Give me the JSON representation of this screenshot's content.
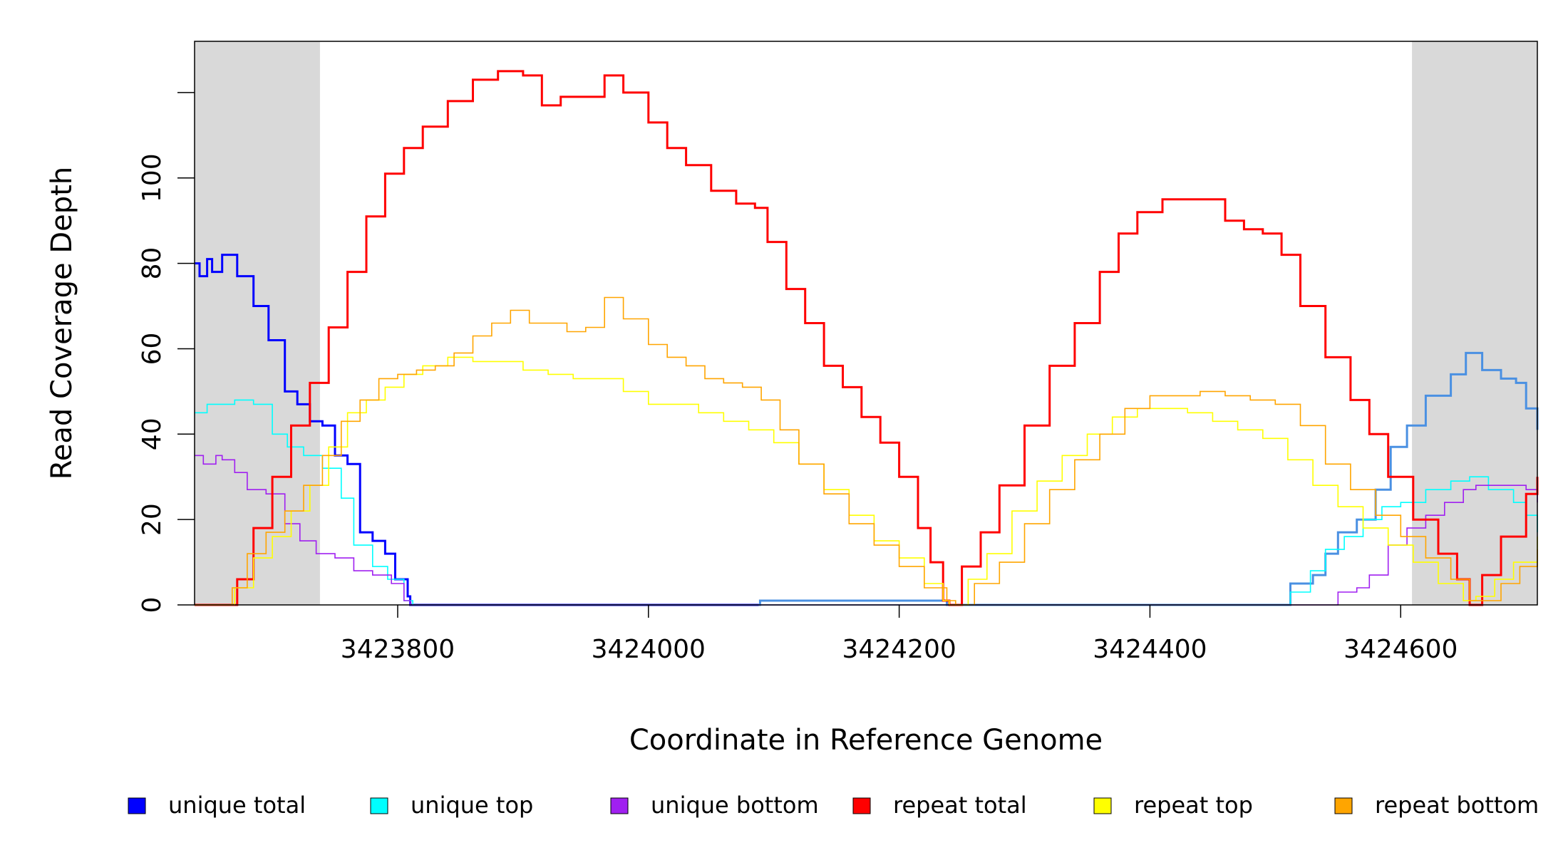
{
  "chart_data": {
    "type": "line",
    "title": "",
    "xlabel": "Coordinate in Reference Genome",
    "ylabel": "Read Coverage Depth",
    "xlim": [
      3423638,
      3424709
    ],
    "ylim": [
      0,
      132
    ],
    "x_ticks": [
      3423800,
      3424000,
      3424200,
      3424400,
      3424600
    ],
    "y_ticks": [
      0,
      20,
      40,
      60,
      80,
      100
    ],
    "grid": false,
    "shaded_regions": [
      [
        3423638,
        3423738
      ],
      [
        3424609,
        3424709
      ]
    ],
    "legend_position": "bottom",
    "series": [
      {
        "name": "unique total",
        "color": "#0000ff",
        "points": [
          [
            3423638,
            80
          ],
          [
            3423642,
            77
          ],
          [
            3423648,
            81
          ],
          [
            3423652,
            78
          ],
          [
            3423660,
            82
          ],
          [
            3423670,
            82
          ],
          [
            3423672,
            77
          ],
          [
            3423685,
            70
          ],
          [
            3423697,
            62
          ],
          [
            3423710,
            50
          ],
          [
            3423720,
            47
          ],
          [
            3423730,
            43
          ],
          [
            3423740,
            42
          ],
          [
            3423750,
            35
          ],
          [
            3423760,
            33
          ],
          [
            3423770,
            17
          ],
          [
            3423780,
            15
          ],
          [
            3423790,
            12
          ],
          [
            3423798,
            6
          ],
          [
            3423808,
            2
          ],
          [
            3423810,
            0
          ],
          [
            3424088,
            0
          ]
        ]
      },
      {
        "name": "unique total",
        "color": "#4a90e2",
        "points": [
          [
            3424088,
            0
          ],
          [
            3424089,
            1
          ],
          [
            3424236,
            1
          ],
          [
            3424238,
            0
          ],
          [
            3424504,
            0
          ],
          [
            3424512,
            5
          ],
          [
            3424530,
            7
          ],
          [
            3424540,
            12
          ],
          [
            3424550,
            17
          ],
          [
            3424565,
            20
          ],
          [
            3424580,
            27
          ],
          [
            3424592,
            37
          ],
          [
            3424605,
            42
          ],
          [
            3424620,
            49
          ],
          [
            3424640,
            54
          ],
          [
            3424652,
            59
          ],
          [
            3424665,
            55
          ],
          [
            3424680,
            53
          ],
          [
            3424692,
            52
          ],
          [
            3424700,
            46
          ],
          [
            3424709,
            41
          ]
        ]
      },
      {
        "name": "unique top",
        "color": "#00ffff",
        "points": [
          [
            3423638,
            45
          ],
          [
            3423648,
            47
          ],
          [
            3423660,
            47
          ],
          [
            3423670,
            48
          ],
          [
            3423685,
            47
          ],
          [
            3423700,
            40
          ],
          [
            3423712,
            37
          ],
          [
            3423725,
            35
          ],
          [
            3423740,
            32
          ],
          [
            3423755,
            25
          ],
          [
            3423765,
            14
          ],
          [
            3423780,
            9
          ],
          [
            3423792,
            6
          ],
          [
            3423805,
            1
          ],
          [
            3423812,
            0
          ],
          [
            3424504,
            0
          ],
          [
            3424512,
            3
          ],
          [
            3424528,
            8
          ],
          [
            3424540,
            13
          ],
          [
            3424555,
            16
          ],
          [
            3424570,
            20
          ],
          [
            3424585,
            23
          ],
          [
            3424600,
            24
          ],
          [
            3424620,
            27
          ],
          [
            3424640,
            29
          ],
          [
            3424655,
            30
          ],
          [
            3424670,
            27
          ],
          [
            3424690,
            24
          ],
          [
            3424700,
            21
          ],
          [
            3424709,
            17
          ]
        ]
      },
      {
        "name": "unique bottom",
        "color": "#a020f0",
        "points": [
          [
            3423638,
            35
          ],
          [
            3423645,
            33
          ],
          [
            3423655,
            35
          ],
          [
            3423660,
            34
          ],
          [
            3423670,
            31
          ],
          [
            3423680,
            27
          ],
          [
            3423695,
            26
          ],
          [
            3423710,
            19
          ],
          [
            3423722,
            15
          ],
          [
            3423735,
            12
          ],
          [
            3423750,
            11
          ],
          [
            3423765,
            8
          ],
          [
            3423780,
            7
          ],
          [
            3423795,
            5
          ],
          [
            3423805,
            1
          ],
          [
            3423810,
            0
          ],
          [
            3424545,
            0
          ],
          [
            3424550,
            3
          ],
          [
            3424565,
            4
          ],
          [
            3424575,
            7
          ],
          [
            3424590,
            14
          ],
          [
            3424605,
            18
          ],
          [
            3424620,
            21
          ],
          [
            3424635,
            24
          ],
          [
            3424650,
            27
          ],
          [
            3424660,
            28
          ],
          [
            3424680,
            28
          ],
          [
            3424700,
            27
          ],
          [
            3424709,
            24
          ]
        ]
      },
      {
        "name": "repeat total",
        "color": "#ff0000",
        "points": [
          [
            3423638,
            0
          ],
          [
            3423660,
            0
          ],
          [
            3423672,
            6
          ],
          [
            3423685,
            18
          ],
          [
            3423700,
            30
          ],
          [
            3423715,
            42
          ],
          [
            3423730,
            52
          ],
          [
            3423745,
            65
          ],
          [
            3423760,
            78
          ],
          [
            3423775,
            91
          ],
          [
            3423790,
            101
          ],
          [
            3423805,
            107
          ],
          [
            3423820,
            112
          ],
          [
            3423840,
            118
          ],
          [
            3423860,
            123
          ],
          [
            3423880,
            125
          ],
          [
            3423900,
            124
          ],
          [
            3423915,
            117
          ],
          [
            3423930,
            119
          ],
          [
            3423945,
            119
          ],
          [
            3423965,
            124
          ],
          [
            3423980,
            120
          ],
          [
            3424000,
            113
          ],
          [
            3424015,
            107
          ],
          [
            3424030,
            103
          ],
          [
            3424050,
            97
          ],
          [
            3424070,
            94
          ],
          [
            3424085,
            93
          ],
          [
            3424095,
            85
          ],
          [
            3424110,
            74
          ],
          [
            3424125,
            66
          ],
          [
            3424140,
            56
          ],
          [
            3424155,
            51
          ],
          [
            3424170,
            44
          ],
          [
            3424185,
            38
          ],
          [
            3424200,
            30
          ],
          [
            3424215,
            18
          ],
          [
            3424225,
            10
          ],
          [
            3424235,
            1
          ],
          [
            3424240,
            0
          ],
          [
            3424250,
            9
          ],
          [
            3424265,
            17
          ],
          [
            3424280,
            28
          ],
          [
            3424300,
            42
          ],
          [
            3424320,
            56
          ],
          [
            3424340,
            66
          ],
          [
            3424360,
            78
          ],
          [
            3424375,
            87
          ],
          [
            3424390,
            92
          ],
          [
            3424410,
            95
          ],
          [
            3424425,
            95
          ],
          [
            3424440,
            95
          ],
          [
            3424460,
            90
          ],
          [
            3424475,
            88
          ],
          [
            3424490,
            87
          ],
          [
            3424505,
            82
          ],
          [
            3424520,
            70
          ],
          [
            3424540,
            58
          ],
          [
            3424560,
            48
          ],
          [
            3424575,
            40
          ],
          [
            3424590,
            30
          ],
          [
            3424610,
            20
          ],
          [
            3424630,
            12
          ],
          [
            3424645,
            6
          ],
          [
            3424655,
            0
          ],
          [
            3424665,
            7
          ],
          [
            3424680,
            16
          ],
          [
            3424700,
            26
          ],
          [
            3424709,
            30
          ]
        ]
      },
      {
        "name": "repeat top",
        "color": "#ffff00",
        "points": [
          [
            3423638,
            0
          ],
          [
            3423660,
            0
          ],
          [
            3423670,
            4
          ],
          [
            3423685,
            11
          ],
          [
            3423700,
            16
          ],
          [
            3423715,
            22
          ],
          [
            3423730,
            28
          ],
          [
            3423745,
            37
          ],
          [
            3423760,
            45
          ],
          [
            3423775,
            48
          ],
          [
            3423790,
            51
          ],
          [
            3423805,
            54
          ],
          [
            3423820,
            56
          ],
          [
            3423840,
            58
          ],
          [
            3423860,
            57
          ],
          [
            3423880,
            57
          ],
          [
            3423900,
            55
          ],
          [
            3423920,
            54
          ],
          [
            3423940,
            53
          ],
          [
            3423960,
            53
          ],
          [
            3423980,
            50
          ],
          [
            3424000,
            47
          ],
          [
            3424020,
            47
          ],
          [
            3424040,
            45
          ],
          [
            3424060,
            43
          ],
          [
            3424080,
            41
          ],
          [
            3424100,
            38
          ],
          [
            3424120,
            33
          ],
          [
            3424140,
            27
          ],
          [
            3424160,
            21
          ],
          [
            3424180,
            15
          ],
          [
            3424200,
            11
          ],
          [
            3424220,
            5
          ],
          [
            3424235,
            1
          ],
          [
            3424240,
            0
          ],
          [
            3424255,
            6
          ],
          [
            3424270,
            12
          ],
          [
            3424290,
            22
          ],
          [
            3424310,
            29
          ],
          [
            3424330,
            35
          ],
          [
            3424350,
            40
          ],
          [
            3424370,
            44
          ],
          [
            3424390,
            46
          ],
          [
            3424410,
            46
          ],
          [
            3424430,
            45
          ],
          [
            3424450,
            43
          ],
          [
            3424470,
            41
          ],
          [
            3424490,
            39
          ],
          [
            3424510,
            34
          ],
          [
            3424530,
            28
          ],
          [
            3424550,
            23
          ],
          [
            3424570,
            18
          ],
          [
            3424590,
            14
          ],
          [
            3424610,
            10
          ],
          [
            3424630,
            5
          ],
          [
            3424650,
            1
          ],
          [
            3424660,
            2
          ],
          [
            3424675,
            6
          ],
          [
            3424690,
            10
          ],
          [
            3424709,
            16
          ]
        ]
      },
      {
        "name": "repeat bottom",
        "color": "#ffa500",
        "points": [
          [
            3423638,
            0
          ],
          [
            3423660,
            0
          ],
          [
            3423668,
            4
          ],
          [
            3423680,
            12
          ],
          [
            3423695,
            17
          ],
          [
            3423710,
            22
          ],
          [
            3423725,
            28
          ],
          [
            3423740,
            35
          ],
          [
            3423755,
            43
          ],
          [
            3423770,
            48
          ],
          [
            3423785,
            53
          ],
          [
            3423800,
            54
          ],
          [
            3423815,
            55
          ],
          [
            3423830,
            56
          ],
          [
            3423845,
            59
          ],
          [
            3423860,
            63
          ],
          [
            3423875,
            66
          ],
          [
            3423890,
            69
          ],
          [
            3423905,
            66
          ],
          [
            3423920,
            66
          ],
          [
            3423935,
            64
          ],
          [
            3423950,
            65
          ],
          [
            3423965,
            72
          ],
          [
            3423980,
            67
          ],
          [
            3424000,
            61
          ],
          [
            3424015,
            58
          ],
          [
            3424030,
            56
          ],
          [
            3424045,
            53
          ],
          [
            3424060,
            52
          ],
          [
            3424075,
            51
          ],
          [
            3424090,
            48
          ],
          [
            3424105,
            41
          ],
          [
            3424120,
            33
          ],
          [
            3424140,
            26
          ],
          [
            3424160,
            19
          ],
          [
            3424180,
            14
          ],
          [
            3424200,
            9
          ],
          [
            3424220,
            4
          ],
          [
            3424238,
            1
          ],
          [
            3424245,
            0
          ],
          [
            3424260,
            5
          ],
          [
            3424280,
            10
          ],
          [
            3424300,
            19
          ],
          [
            3424320,
            27
          ],
          [
            3424340,
            34
          ],
          [
            3424360,
            40
          ],
          [
            3424380,
            46
          ],
          [
            3424400,
            49
          ],
          [
            3424420,
            49
          ],
          [
            3424440,
            50
          ],
          [
            3424460,
            49
          ],
          [
            3424480,
            48
          ],
          [
            3424500,
            47
          ],
          [
            3424520,
            42
          ],
          [
            3424540,
            33
          ],
          [
            3424560,
            27
          ],
          [
            3424580,
            21
          ],
          [
            3424600,
            16
          ],
          [
            3424620,
            11
          ],
          [
            3424640,
            6
          ],
          [
            3424655,
            1
          ],
          [
            3424665,
            1
          ],
          [
            3424680,
            5
          ],
          [
            3424695,
            9
          ],
          [
            3424709,
            13
          ]
        ]
      }
    ]
  },
  "legend": [
    {
      "label": "unique total",
      "color": "#0000ff"
    },
    {
      "label": "unique top",
      "color": "#00ffff"
    },
    {
      "label": "unique bottom",
      "color": "#a020f0"
    },
    {
      "label": "repeat total",
      "color": "#ff0000"
    },
    {
      "label": "repeat top",
      "color": "#ffff00"
    },
    {
      "label": "repeat bottom",
      "color": "#ffa500"
    }
  ],
  "shade_color": "#d9d9d9"
}
